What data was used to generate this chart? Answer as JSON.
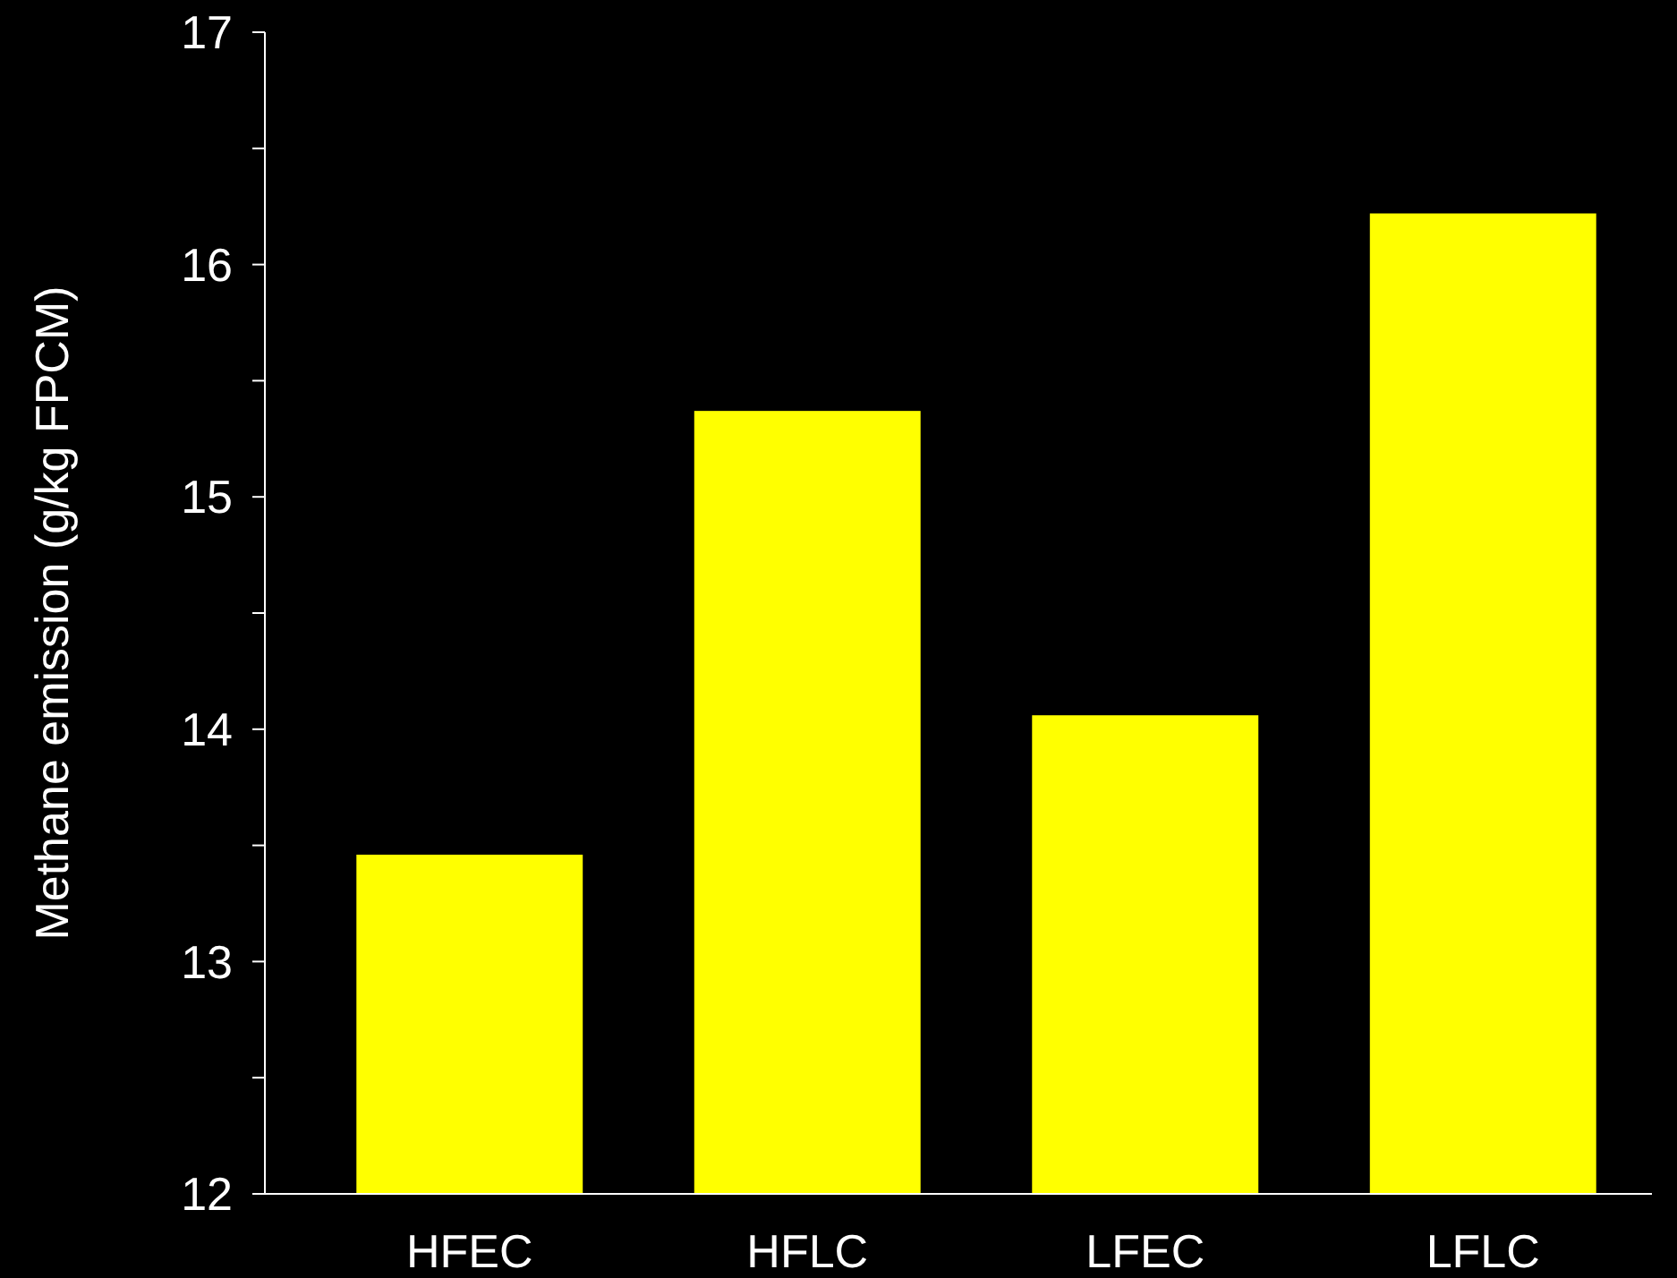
{
  "chart_data": {
    "type": "bar",
    "ylabel": "Methane emission (g/kg FPCM)",
    "categories": [
      "HFEC",
      "HFLC",
      "LFEC",
      "LFLC"
    ],
    "values": [
      13.46,
      15.37,
      14.06,
      16.22
    ],
    "color": "#ffff00",
    "ylim": [
      12,
      17
    ],
    "yticks": [
      12,
      {
        "value": 12.5,
        "label": null
      },
      13,
      {
        "value": 13.5,
        "label": null
      },
      14,
      {
        "value": 14.5,
        "label": null
      },
      15,
      {
        "value": 15.5,
        "label": null
      },
      16,
      {
        "value": 16.5,
        "label": null
      },
      17
    ],
    "grid": false
  }
}
